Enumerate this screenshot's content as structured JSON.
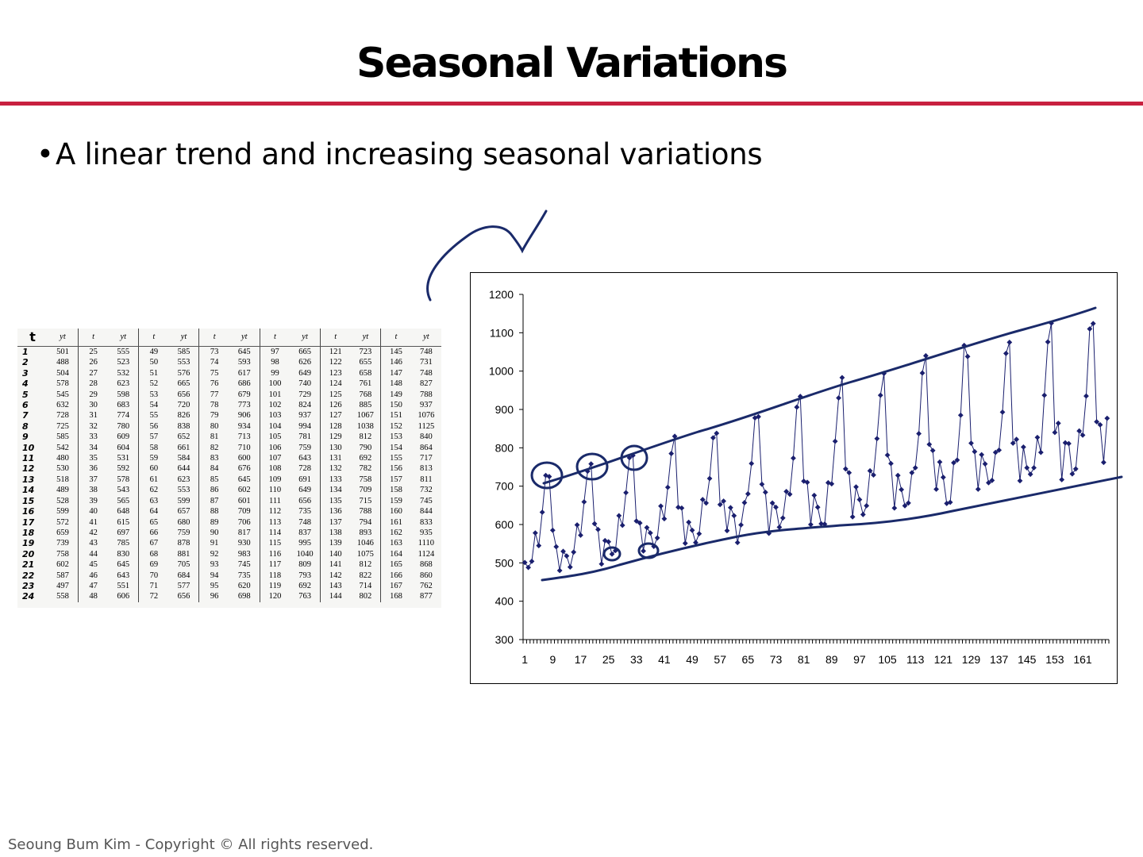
{
  "slide": {
    "title": "Seasonal Variations",
    "bullet": "A linear trend and increasing seasonal variations",
    "bullet_marker": "•",
    "footer": "Seoung Bum Kim - Copyright © All rights reserved."
  },
  "colors": {
    "accent_rule": "#c8203f",
    "series": "#1a1f6e",
    "annotation": "#1a2a6a"
  },
  "table": {
    "headers": [
      "t",
      "yt",
      "t",
      "yt",
      "t",
      "yt",
      "t",
      "yt",
      "t",
      "yt",
      "t",
      "yt",
      "t",
      "yt"
    ],
    "rows": [
      [
        "1",
        "501",
        "25",
        "555",
        "49",
        "585",
        "73",
        "645",
        "97",
        "665",
        "121",
        "723",
        "145",
        "748"
      ],
      [
        "2",
        "488",
        "26",
        "523",
        "50",
        "553",
        "74",
        "593",
        "98",
        "626",
        "122",
        "655",
        "146",
        "731"
      ],
      [
        "3",
        "504",
        "27",
        "532",
        "51",
        "576",
        "75",
        "617",
        "99",
        "649",
        "123",
        "658",
        "147",
        "748"
      ],
      [
        "4",
        "578",
        "28",
        "623",
        "52",
        "665",
        "76",
        "686",
        "100",
        "740",
        "124",
        "761",
        "148",
        "827"
      ],
      [
        "5",
        "545",
        "29",
        "598",
        "53",
        "656",
        "77",
        "679",
        "101",
        "729",
        "125",
        "768",
        "149",
        "788"
      ],
      [
        "6",
        "632",
        "30",
        "683",
        "54",
        "720",
        "78",
        "773",
        "102",
        "824",
        "126",
        "885",
        "150",
        "937"
      ],
      [
        "7",
        "728",
        "31",
        "774",
        "55",
        "826",
        "79",
        "906",
        "103",
        "937",
        "127",
        "1067",
        "151",
        "1076"
      ],
      [
        "8",
        "725",
        "32",
        "780",
        "56",
        "838",
        "80",
        "934",
        "104",
        "994",
        "128",
        "1038",
        "152",
        "1125"
      ],
      [
        "9",
        "585",
        "33",
        "609",
        "57",
        "652",
        "81",
        "713",
        "105",
        "781",
        "129",
        "812",
        "153",
        "840"
      ],
      [
        "10",
        "542",
        "34",
        "604",
        "58",
        "661",
        "82",
        "710",
        "106",
        "759",
        "130",
        "790",
        "154",
        "864"
      ],
      [
        "11",
        "480",
        "35",
        "531",
        "59",
        "584",
        "83",
        "600",
        "107",
        "643",
        "131",
        "692",
        "155",
        "717"
      ],
      [
        "12",
        "530",
        "36",
        "592",
        "60",
        "644",
        "84",
        "676",
        "108",
        "728",
        "132",
        "782",
        "156",
        "813"
      ],
      [
        "13",
        "518",
        "37",
        "578",
        "61",
        "623",
        "85",
        "645",
        "109",
        "691",
        "133",
        "758",
        "157",
        "811"
      ],
      [
        "14",
        "489",
        "38",
        "543",
        "62",
        "553",
        "86",
        "602",
        "110",
        "649",
        "134",
        "709",
        "158",
        "732"
      ],
      [
        "15",
        "528",
        "39",
        "565",
        "63",
        "599",
        "87",
        "601",
        "111",
        "656",
        "135",
        "715",
        "159",
        "745"
      ],
      [
        "16",
        "599",
        "40",
        "648",
        "64",
        "657",
        "88",
        "709",
        "112",
        "735",
        "136",
        "788",
        "160",
        "844"
      ],
      [
        "17",
        "572",
        "41",
        "615",
        "65",
        "680",
        "89",
        "706",
        "113",
        "748",
        "137",
        "794",
        "161",
        "833"
      ],
      [
        "18",
        "659",
        "42",
        "697",
        "66",
        "759",
        "90",
        "817",
        "114",
        "837",
        "138",
        "893",
        "162",
        "935"
      ],
      [
        "19",
        "739",
        "43",
        "785",
        "67",
        "878",
        "91",
        "930",
        "115",
        "995",
        "139",
        "1046",
        "163",
        "1110"
      ],
      [
        "20",
        "758",
        "44",
        "830",
        "68",
        "881",
        "92",
        "983",
        "116",
        "1040",
        "140",
        "1075",
        "164",
        "1124"
      ],
      [
        "21",
        "602",
        "45",
        "645",
        "69",
        "705",
        "93",
        "745",
        "117",
        "809",
        "141",
        "812",
        "165",
        "868"
      ],
      [
        "22",
        "587",
        "46",
        "643",
        "70",
        "684",
        "94",
        "735",
        "118",
        "793",
        "142",
        "822",
        "166",
        "860"
      ],
      [
        "23",
        "497",
        "47",
        "551",
        "71",
        "577",
        "95",
        "620",
        "119",
        "692",
        "143",
        "714",
        "167",
        "762"
      ],
      [
        "24",
        "558",
        "48",
        "606",
        "72",
        "656",
        "96",
        "698",
        "120",
        "763",
        "144",
        "802",
        "168",
        "877"
      ]
    ]
  },
  "chart_data": {
    "type": "line",
    "markers": "diamond",
    "title": "",
    "xlabel": "",
    "ylabel": "",
    "ylim": [
      300,
      1200
    ],
    "yticks": [
      300,
      400,
      500,
      600,
      700,
      800,
      900,
      1000,
      1100,
      1200
    ],
    "xlim": [
      1,
      168
    ],
    "xticks": [
      1,
      9,
      17,
      25,
      33,
      41,
      49,
      57,
      65,
      73,
      81,
      89,
      97,
      105,
      113,
      121,
      129,
      137,
      145,
      153,
      161
    ],
    "x": [
      1,
      2,
      3,
      4,
      5,
      6,
      7,
      8,
      9,
      10,
      11,
      12,
      13,
      14,
      15,
      16,
      17,
      18,
      19,
      20,
      21,
      22,
      23,
      24,
      25,
      26,
      27,
      28,
      29,
      30,
      31,
      32,
      33,
      34,
      35,
      36,
      37,
      38,
      39,
      40,
      41,
      42,
      43,
      44,
      45,
      46,
      47,
      48,
      49,
      50,
      51,
      52,
      53,
      54,
      55,
      56,
      57,
      58,
      59,
      60,
      61,
      62,
      63,
      64,
      65,
      66,
      67,
      68,
      69,
      70,
      71,
      72,
      73,
      74,
      75,
      76,
      77,
      78,
      79,
      80,
      81,
      82,
      83,
      84,
      85,
      86,
      87,
      88,
      89,
      90,
      91,
      92,
      93,
      94,
      95,
      96,
      97,
      98,
      99,
      100,
      101,
      102,
      103,
      104,
      105,
      106,
      107,
      108,
      109,
      110,
      111,
      112,
      113,
      114,
      115,
      116,
      117,
      118,
      119,
      120,
      121,
      122,
      123,
      124,
      125,
      126,
      127,
      128,
      129,
      130,
      131,
      132,
      133,
      134,
      135,
      136,
      137,
      138,
      139,
      140,
      141,
      142,
      143,
      144,
      145,
      146,
      147,
      148,
      149,
      150,
      151,
      152,
      153,
      154,
      155,
      156,
      157,
      158,
      159,
      160,
      161,
      162,
      163,
      164,
      165,
      166,
      167,
      168
    ],
    "series": [
      {
        "values": [
          501,
          488,
          504,
          578,
          545,
          632,
          728,
          725,
          585,
          542,
          480,
          530,
          518,
          489,
          528,
          599,
          572,
          659,
          739,
          758,
          602,
          587,
          497,
          558,
          555,
          523,
          532,
          623,
          598,
          683,
          774,
          780,
          609,
          604,
          531,
          592,
          578,
          543,
          565,
          648,
          615,
          697,
          785,
          830,
          645,
          643,
          551,
          606,
          585,
          553,
          576,
          665,
          656,
          720,
          826,
          838,
          652,
          661,
          584,
          644,
          623,
          553,
          599,
          657,
          680,
          759,
          878,
          881,
          705,
          684,
          577,
          656,
          645,
          593,
          617,
          686,
          679,
          773,
          906,
          934,
          713,
          710,
          600,
          676,
          645,
          602,
          601,
          709,
          706,
          817,
          930,
          983,
          745,
          735,
          620,
          698,
          665,
          626,
          649,
          740,
          729,
          824,
          937,
          994,
          781,
          759,
          643,
          728,
          691,
          649,
          656,
          735,
          748,
          837,
          995,
          1040,
          809,
          793,
          692,
          763,
          723,
          655,
          658,
          761,
          768,
          885,
          1067,
          1038,
          812,
          790,
          692,
          782,
          758,
          709,
          715,
          788,
          794,
          893,
          1046,
          1075,
          812,
          822,
          714,
          802,
          748,
          731,
          748,
          827,
          788,
          937,
          1076,
          1125,
          840,
          864,
          717,
          813,
          811,
          732,
          745,
          844,
          833,
          935,
          1110,
          1124,
          868,
          860,
          762,
          877
        ]
      }
    ]
  }
}
